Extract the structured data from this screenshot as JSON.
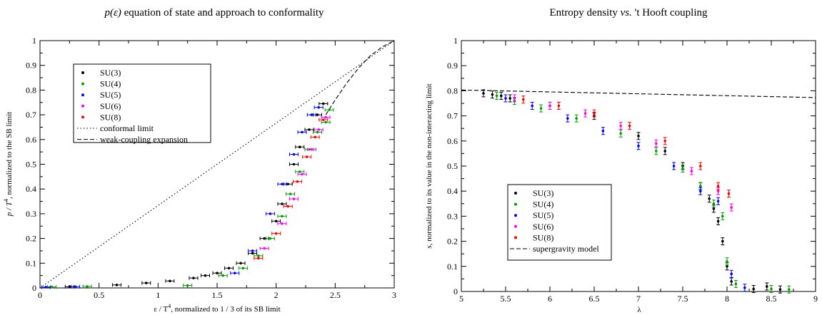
{
  "chart_data": [
    {
      "type": "scatter",
      "title_prefix": "p(ε)",
      "title_rest": " equation of state and approach to conformality",
      "xlabel_main": "ε / T",
      "xlabel_sup": "4",
      "xlabel_rest": ", normalized to 1 / 3 of its SB limit",
      "ylabel_main": "p / T",
      "ylabel_sup": "4",
      "ylabel_rest": ", normalized to the SB limit",
      "xlim": [
        0,
        3
      ],
      "ylim": [
        0,
        1
      ],
      "xticks": [
        0,
        0.5,
        1,
        1.5,
        2,
        2.5,
        3
      ],
      "xtick_labels": [
        "0",
        "0.5",
        "1",
        "1.5",
        "2",
        "2.5",
        "3"
      ],
      "yticks": [
        0,
        0.1,
        0.2,
        0.3,
        0.4,
        0.5,
        0.6,
        0.7,
        0.8,
        0.9,
        1
      ],
      "ytick_labels": [
        "0",
        "0.1",
        "0.2",
        "0.3",
        "0.4",
        "0.5",
        "0.6",
        "0.7",
        "0.8",
        "0.9",
        "1"
      ],
      "legend_position": "top-left",
      "series": [
        {
          "name": "SU(3)",
          "color": "#000000",
          "points": [
            [
              0.25,
              0.005
            ],
            [
              0.65,
              0.012
            ],
            [
              0.9,
              0.02
            ],
            [
              1.1,
              0.028
            ],
            [
              1.3,
              0.04
            ],
            [
              1.4,
              0.05
            ],
            [
              1.5,
              0.06
            ],
            [
              1.6,
              0.08
            ],
            [
              1.7,
              0.1
            ],
            [
              1.8,
              0.14
            ],
            [
              1.9,
              0.2
            ],
            [
              2.0,
              0.27
            ],
            [
              2.05,
              0.34
            ],
            [
              2.1,
              0.42
            ],
            [
              2.15,
              0.5
            ],
            [
              2.2,
              0.57
            ],
            [
              2.28,
              0.64
            ],
            [
              2.35,
              0.7
            ],
            [
              2.4,
              0.745
            ]
          ]
        },
        {
          "name": "SU(4)",
          "color": "#00a000",
          "points": [
            [
              0.1,
              0.004
            ],
            [
              0.4,
              0.006
            ],
            [
              1.25,
              0.01
            ],
            [
              1.55,
              0.05
            ],
            [
              1.72,
              0.08
            ],
            [
              1.85,
              0.13
            ],
            [
              1.95,
              0.2
            ],
            [
              2.05,
              0.29
            ],
            [
              2.12,
              0.38
            ],
            [
              2.2,
              0.47
            ],
            [
              2.28,
              0.56
            ],
            [
              2.35,
              0.63
            ],
            [
              2.42,
              0.67
            ],
            [
              2.45,
              0.72
            ]
          ]
        },
        {
          "name": "SU(5)",
          "color": "#0000ff",
          "points": [
            [
              0.05,
              0.003
            ],
            [
              0.3,
              0.005
            ],
            [
              1.65,
              0.06
            ],
            [
              1.8,
              0.15
            ],
            [
              1.95,
              0.3
            ],
            [
              2.05,
              0.42
            ],
            [
              2.15,
              0.54
            ],
            [
              2.22,
              0.63
            ],
            [
              2.3,
              0.7
            ],
            [
              2.36,
              0.73
            ]
          ]
        },
        {
          "name": "SU(6)",
          "color": "#ff00ff",
          "points": [
            [
              1.9,
              0.16
            ],
            [
              2.05,
              0.26
            ],
            [
              2.15,
              0.36
            ],
            [
              2.22,
              0.46
            ],
            [
              2.3,
              0.56
            ],
            [
              2.36,
              0.64
            ],
            [
              2.42,
              0.69
            ]
          ]
        },
        {
          "name": "SU(8)",
          "color": "#ff0000",
          "points": [
            [
              1.85,
              0.12
            ],
            [
              2.0,
              0.22
            ],
            [
              2.1,
              0.33
            ],
            [
              2.18,
              0.43
            ],
            [
              2.26,
              0.53
            ],
            [
              2.33,
              0.61
            ],
            [
              2.4,
              0.68
            ]
          ]
        }
      ],
      "lines": [
        {
          "name": "conformal limit",
          "style": "dotted",
          "points": [
            [
              0,
              0
            ],
            [
              3,
              1
            ]
          ]
        },
        {
          "name": "weak-coupling expansion",
          "style": "dashed",
          "points": [
            [
              2.42,
              0.7
            ],
            [
              2.5,
              0.76
            ],
            [
              2.6,
              0.83
            ],
            [
              2.7,
              0.89
            ],
            [
              2.8,
              0.94
            ],
            [
              2.9,
              0.975
            ],
            [
              3.0,
              1.0
            ]
          ]
        }
      ]
    },
    {
      "type": "scatter",
      "title_main": "Entropy density ",
      "title_em": "vs.",
      "title_rest": " 't Hooft coupling",
      "xlabel": "λ",
      "ylabel_main": "s",
      "ylabel_rest": ", normalized to its value in the non-interacting limit",
      "xlim": [
        5,
        9
      ],
      "ylim": [
        0,
        1
      ],
      "xticks": [
        5,
        5.5,
        6,
        6.5,
        7,
        7.5,
        8,
        8.5,
        9
      ],
      "xtick_labels": [
        "5",
        "5.5",
        "6",
        "6.5",
        "7",
        "7.5",
        "8",
        "8.5",
        "9"
      ],
      "yticks": [
        0,
        0.1,
        0.2,
        0.3,
        0.4,
        0.5,
        0.6,
        0.7,
        0.8,
        0.9,
        1
      ],
      "ytick_labels": [
        "0",
        "0.1",
        "0.2",
        "0.3",
        "0.4",
        "0.5",
        "0.6",
        "0.7",
        "0.8",
        "0.9",
        "1"
      ],
      "legend_position": "bottom-left",
      "series": [
        {
          "name": "SU(3)",
          "color": "#000000",
          "points": [
            [
              5.25,
              0.79
            ],
            [
              5.35,
              0.785
            ],
            [
              5.45,
              0.78
            ],
            [
              5.55,
              0.77
            ],
            [
              6.0,
              0.74
            ],
            [
              6.5,
              0.7
            ],
            [
              7.0,
              0.62
            ],
            [
              7.3,
              0.56
            ],
            [
              7.5,
              0.5
            ],
            [
              7.7,
              0.42
            ],
            [
              7.8,
              0.37
            ],
            [
              7.85,
              0.33
            ],
            [
              7.9,
              0.28
            ],
            [
              7.95,
              0.2
            ],
            [
              8.0,
              0.1
            ],
            [
              8.05,
              0.04
            ],
            [
              8.3,
              0.01
            ],
            [
              8.45,
              0.02
            ],
            [
              8.6,
              0.008
            ]
          ]
        },
        {
          "name": "SU(4)",
          "color": "#00a000",
          "points": [
            [
              5.4,
              0.78
            ],
            [
              5.6,
              0.76
            ],
            [
              5.9,
              0.73
            ],
            [
              6.3,
              0.69
            ],
            [
              6.8,
              0.63
            ],
            [
              7.2,
              0.56
            ],
            [
              7.5,
              0.49
            ],
            [
              7.7,
              0.42
            ],
            [
              7.85,
              0.35
            ],
            [
              7.95,
              0.3
            ],
            [
              8.0,
              0.12
            ],
            [
              8.1,
              0.03
            ],
            [
              8.5,
              0.01
            ],
            [
              8.7,
              0.008
            ]
          ]
        },
        {
          "name": "SU(5)",
          "color": "#0000ff",
          "points": [
            [
              5.5,
              0.77
            ],
            [
              5.8,
              0.74
            ],
            [
              6.2,
              0.69
            ],
            [
              6.6,
              0.64
            ],
            [
              7.0,
              0.58
            ],
            [
              7.4,
              0.5
            ],
            [
              7.7,
              0.4
            ],
            [
              7.9,
              0.36
            ],
            [
              8.05,
              0.07
            ],
            [
              8.2,
              0.015
            ]
          ]
        },
        {
          "name": "SU(6)",
          "color": "#ff00ff",
          "points": [
            [
              5.6,
              0.77
            ],
            [
              6.0,
              0.74
            ],
            [
              6.4,
              0.71
            ],
            [
              6.8,
              0.66
            ],
            [
              7.2,
              0.59
            ],
            [
              7.6,
              0.48
            ],
            [
              7.9,
              0.4
            ],
            [
              8.05,
              0.335
            ]
          ]
        },
        {
          "name": "SU(8)",
          "color": "#ff0000",
          "points": [
            [
              5.7,
              0.765
            ],
            [
              6.1,
              0.74
            ],
            [
              6.5,
              0.71
            ],
            [
              6.9,
              0.66
            ],
            [
              7.3,
              0.6
            ],
            [
              7.7,
              0.5
            ],
            [
              7.9,
              0.42
            ],
            [
              8.02,
              0.39
            ]
          ]
        }
      ],
      "lines": [
        {
          "name": "supergravity model",
          "style": "dashed",
          "points": [
            [
              5,
              0.803
            ],
            [
              9,
              0.773
            ]
          ]
        }
      ]
    }
  ]
}
